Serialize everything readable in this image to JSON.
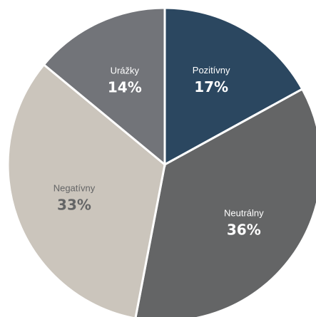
{
  "chart_data": {
    "type": "pie",
    "title": "",
    "slices": [
      {
        "label": "Pozitívny",
        "value": 17,
        "value_label": "17%",
        "color": "#2b4760",
        "label_color": "#ffffff"
      },
      {
        "label": "Neutrálny",
        "value": 36,
        "value_label": "36%",
        "color": "#646566",
        "label_color": "#ffffff"
      },
      {
        "label": "Negatívny",
        "value": 33,
        "value_label": "33%",
        "color": "#cbc5bc",
        "label_color": "#646566"
      },
      {
        "label": "Urážky",
        "value": 14,
        "value_label": "14%",
        "color": "#727479",
        "label_color": "#ffffff"
      }
    ],
    "start": "top",
    "direction": "clockwise",
    "legend": "none",
    "data_labels": "inside"
  }
}
